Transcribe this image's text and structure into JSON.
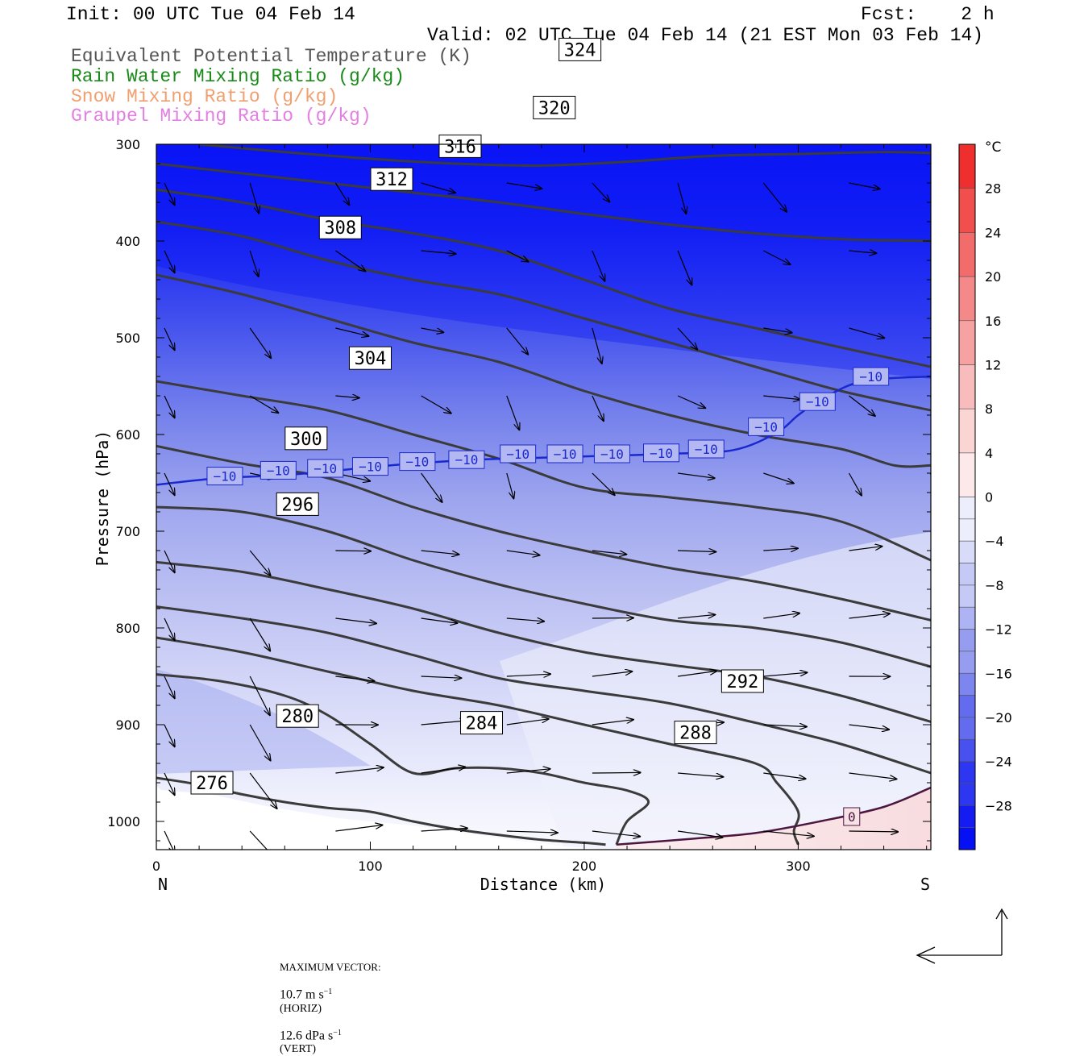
{
  "header": {
    "init": "Init: 00 UTC Tue 04 Feb 14",
    "fcst": "Fcst:    2 h",
    "valid": "Valid: 02 UTC Tue 04 Feb 14 (21 EST Mon 03 Feb 14)",
    "fields": [
      {
        "label": "Equivalent Potential Temperature (K)",
        "color": "#555555"
      },
      {
        "label": "Rain Water Mixing Ratio (g/kg)",
        "color": "#1a8a1a"
      },
      {
        "label": "Snow Mixing Ratio (g/kg)",
        "color": "#f0a070"
      },
      {
        "label": "Graupel Mixing Ratio (g/kg)",
        "color": "#e37ee3"
      }
    ]
  },
  "chart_data": {
    "type": "cross-section",
    "xlabel": "Distance (km)",
    "ylabel": "Pressure (hPa)",
    "xlim": [
      0,
      362
    ],
    "ylim": [
      1025,
      300
    ],
    "x_ticks": [
      0,
      100,
      200,
      300
    ],
    "y_ticks": [
      300,
      400,
      500,
      600,
      700,
      800,
      900,
      1000
    ],
    "x_end_labels": {
      "left": "N",
      "right": "S"
    },
    "colorbar": {
      "unit": "°C",
      "tick_labels": [
        "28",
        "24",
        "20",
        "16",
        "12",
        "8",
        "4",
        "0",
        "−4",
        "−8",
        "−12",
        "−16",
        "−20",
        "−24",
        "−28"
      ],
      "tick_values": [
        28,
        24,
        20,
        16,
        12,
        8,
        4,
        0,
        -4,
        -8,
        -12,
        -16,
        -20,
        -24,
        -28
      ],
      "range": [
        -32,
        32
      ]
    },
    "theta_e_contours": [
      {
        "value": 276,
        "points": [
          [
            0,
            955
          ],
          [
            20,
            962
          ],
          [
            40,
            972
          ],
          [
            60,
            980
          ],
          [
            80,
            986
          ],
          [
            100,
            990
          ],
          [
            120,
            1000
          ],
          [
            140,
            1008
          ],
          [
            160,
            1014
          ],
          [
            180,
            1019
          ],
          [
            200,
            1022
          ],
          [
            210,
            1024
          ]
        ],
        "label_at": [
          26,
          960
        ]
      },
      {
        "value": 280,
        "points": [
          [
            0,
            848
          ],
          [
            30,
            855
          ],
          [
            60,
            870
          ],
          [
            80,
            890
          ],
          [
            100,
            920
          ],
          [
            120,
            950
          ],
          [
            140,
            945
          ],
          [
            160,
            945
          ],
          [
            180,
            950
          ],
          [
            200,
            960
          ],
          [
            220,
            968
          ],
          [
            230,
            980
          ],
          [
            220,
            1000
          ],
          [
            215,
            1024
          ]
        ],
        "label_at": [
          66,
          891
        ]
      },
      {
        "value": 284,
        "points": [
          [
            0,
            810
          ],
          [
            40,
            825
          ],
          [
            80,
            845
          ],
          [
            120,
            865
          ],
          [
            160,
            880
          ],
          [
            200,
            900
          ],
          [
            240,
            920
          ],
          [
            280,
            940
          ],
          [
            290,
            960
          ],
          [
            300,
            990
          ],
          [
            298,
            1010
          ],
          [
            300,
            1024
          ]
        ],
        "label_at": [
          152,
          898
        ]
      },
      {
        "value": 288,
        "points": [
          [
            0,
            778
          ],
          [
            40,
            790
          ],
          [
            80,
            805
          ],
          [
            120,
            828
          ],
          [
            160,
            852
          ],
          [
            200,
            865
          ],
          [
            240,
            878
          ],
          [
            280,
            898
          ],
          [
            320,
            920
          ],
          [
            362,
            950
          ]
        ],
        "label_at": [
          252,
          908
        ]
      },
      {
        "value": 292,
        "points": [
          [
            0,
            732
          ],
          [
            40,
            742
          ],
          [
            80,
            760
          ],
          [
            120,
            780
          ],
          [
            160,
            805
          ],
          [
            200,
            825
          ],
          [
            240,
            838
          ],
          [
            280,
            850
          ],
          [
            320,
            870
          ],
          [
            362,
            897
          ]
        ],
        "label_at": [
          274,
          855
        ]
      },
      {
        "value": 296,
        "points": [
          [
            0,
            675
          ],
          [
            40,
            680
          ],
          [
            80,
            700
          ],
          [
            120,
            730
          ],
          [
            160,
            755
          ],
          [
            200,
            775
          ],
          [
            240,
            792
          ],
          [
            280,
            800
          ],
          [
            320,
            815
          ],
          [
            362,
            840
          ]
        ],
        "label_at": [
          66,
          672
        ]
      },
      {
        "value": 300,
        "points": [
          [
            0,
            612
          ],
          [
            40,
            630
          ],
          [
            80,
            645
          ],
          [
            120,
            675
          ],
          [
            160,
            700
          ],
          [
            200,
            720
          ],
          [
            240,
            738
          ],
          [
            280,
            752
          ],
          [
            320,
            770
          ],
          [
            362,
            792
          ]
        ],
        "label_at": [
          70,
          604
        ]
      },
      {
        "value": 304,
        "points": [
          [
            0,
            545
          ],
          [
            40,
            560
          ],
          [
            80,
            575
          ],
          [
            120,
            600
          ],
          [
            160,
            625
          ],
          [
            200,
            655
          ],
          [
            240,
            665
          ],
          [
            280,
            675
          ],
          [
            320,
            690
          ],
          [
            362,
            730
          ]
        ],
        "label_at": [
          100,
          521
        ]
      },
      {
        "value": 308,
        "points": [
          [
            0,
            435
          ],
          [
            40,
            455
          ],
          [
            80,
            480
          ],
          [
            120,
            505
          ],
          [
            160,
            525
          ],
          [
            200,
            555
          ],
          [
            240,
            580
          ],
          [
            280,
            600
          ],
          [
            320,
            615
          ],
          [
            345,
            632
          ],
          [
            362,
            632
          ]
        ],
        "label_at": [
          86,
          386
        ]
      },
      {
        "value": 312,
        "points": [
          [
            0,
            380
          ],
          [
            40,
            395
          ],
          [
            80,
            420
          ],
          [
            120,
            440
          ],
          [
            160,
            455
          ],
          [
            200,
            480
          ],
          [
            240,
            505
          ],
          [
            280,
            530
          ],
          [
            320,
            555
          ],
          [
            362,
            575
          ]
        ],
        "label_at": [
          110,
          336
        ]
      },
      {
        "value": 316,
        "points": [
          [
            0,
            347
          ],
          [
            40,
            360
          ],
          [
            80,
            378
          ],
          [
            120,
            392
          ],
          [
            160,
            410
          ],
          [
            200,
            440
          ],
          [
            240,
            470
          ],
          [
            280,
            490
          ],
          [
            320,
            510
          ],
          [
            362,
            530
          ]
        ],
        "label_at": [
          142,
          302
        ]
      },
      {
        "value": 320,
        "points": [
          [
            0,
            320
          ],
          [
            40,
            330
          ],
          [
            80,
            340
          ],
          [
            120,
            350
          ],
          [
            160,
            360
          ],
          [
            200,
            372
          ],
          [
            240,
            383
          ],
          [
            280,
            392
          ],
          [
            320,
            398
          ],
          [
            362,
            400
          ]
        ],
        "label_at": [
          186,
          262
        ]
      },
      {
        "value": 324,
        "points": [
          [
            20,
            300
          ],
          [
            60,
            308
          ],
          [
            100,
            315
          ],
          [
            140,
            320
          ],
          [
            180,
            322
          ],
          [
            220,
            318
          ],
          [
            260,
            312
          ],
          [
            300,
            310
          ],
          [
            340,
            308
          ],
          [
            362,
            309
          ]
        ],
        "label_at": [
          198,
          202
        ]
      }
    ],
    "temperature_contour_-10": {
      "value": -10,
      "points": [
        [
          0,
          652
        ],
        [
          30,
          645
        ],
        [
          60,
          642
        ],
        [
          90,
          636
        ],
        [
          120,
          630
        ],
        [
          150,
          626
        ],
        [
          180,
          624
        ],
        [
          210,
          622
        ],
        [
          240,
          620
        ],
        [
          270,
          616
        ],
        [
          290,
          598
        ],
        [
          300,
          580
        ],
        [
          310,
          565
        ],
        [
          330,
          545
        ],
        [
          362,
          540
        ]
      ],
      "label_positions": [
        [
          32,
          643
        ],
        [
          57,
          637
        ],
        [
          79,
          635
        ],
        [
          100,
          633
        ],
        [
          122,
          628
        ],
        [
          145,
          626
        ],
        [
          169,
          620
        ],
        [
          191,
          620
        ],
        [
          213,
          620
        ],
        [
          236,
          619
        ],
        [
          257,
          615
        ],
        [
          285,
          592
        ],
        [
          309,
          566
        ],
        [
          334,
          540
        ]
      ]
    },
    "temperature_contour_0": {
      "value": 0,
      "points": [
        [
          215,
          1024
        ],
        [
          250,
          1018
        ],
        [
          280,
          1012
        ],
        [
          310,
          1000
        ],
        [
          340,
          985
        ],
        [
          362,
          965
        ]
      ],
      "label_at": [
        325,
        995
      ]
    }
  },
  "footer": {
    "max_vector_label": "MAXIMUM VECTOR:",
    "horiz_value": "10.7 m s",
    "horiz_exp": "−1",
    "horiz_unit": "(HORIZ)",
    "vert_value": "12.6 dPa s",
    "vert_exp": "−1",
    "vert_unit": "(VERT)"
  },
  "colors": {
    "theta_e": "#3b3b3b",
    "temp_cold": "#1a28d0",
    "temp_warm": "#4b1640",
    "vector": "#000000"
  }
}
